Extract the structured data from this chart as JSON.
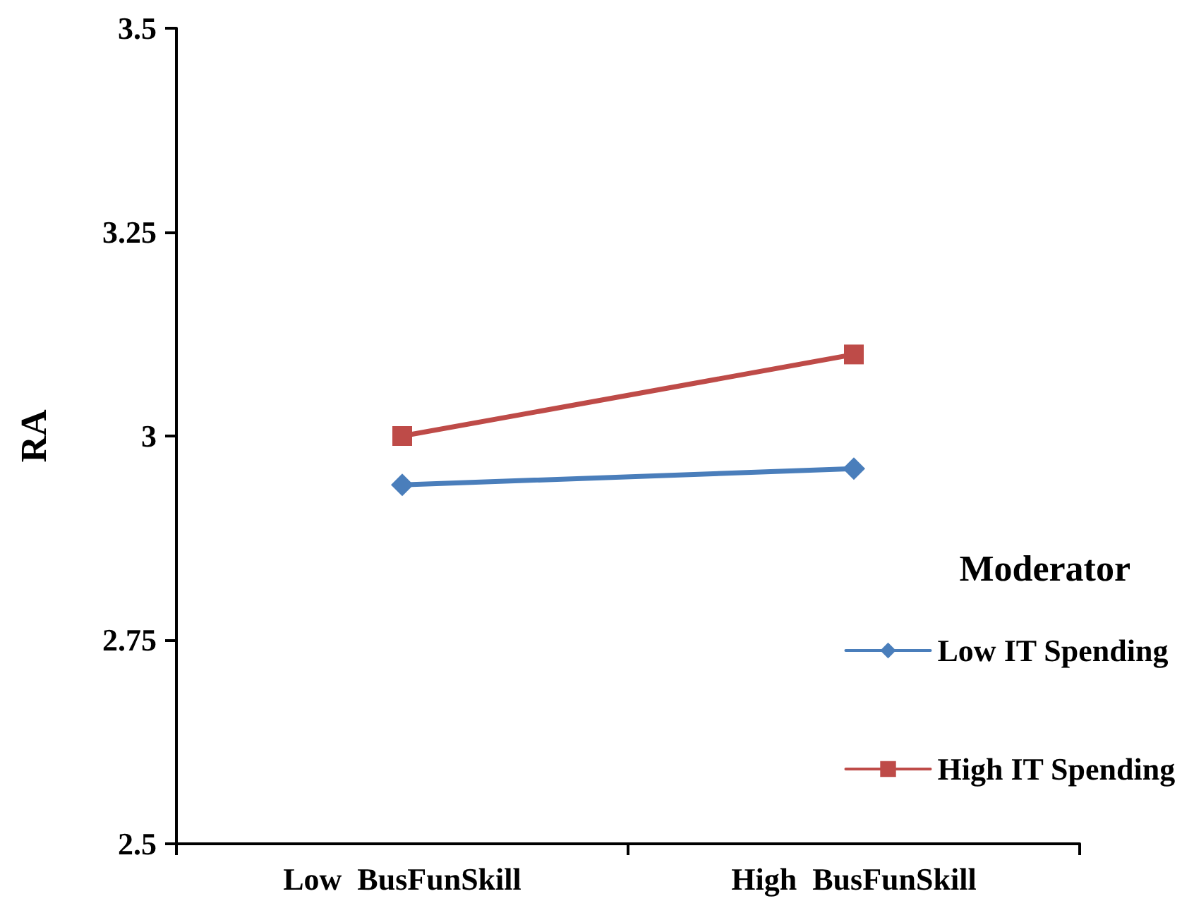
{
  "chart_data": {
    "type": "line",
    "ylabel": "RA",
    "legend_title": "Moderator",
    "legend": "right",
    "categories": [
      "Low  BusFunSkill",
      "High  BusFunSkill"
    ],
    "series": [
      {
        "name": "Low IT Spending",
        "color": "#4a7ebb",
        "marker": "diamond",
        "values": [
          2.94,
          2.96
        ]
      },
      {
        "name": "High IT Spending",
        "color": "#be4b48",
        "marker": "square",
        "values": [
          3.0,
          3.1
        ]
      }
    ],
    "ylim": [
      2.5,
      3.5
    ],
    "yticks": [
      2.5,
      2.75,
      3,
      3.25,
      3.5
    ],
    "grid": false,
    "line_style": "solid"
  }
}
